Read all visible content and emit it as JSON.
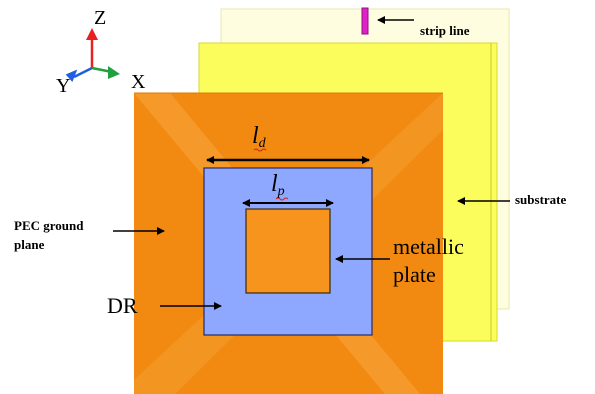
{
  "labels": {
    "strip_line": "strip line",
    "substrate": "substrate",
    "pec_line1": "PEC ground",
    "pec_line2": "plane",
    "metallic_line1": "metallic",
    "metallic_line2": "plate",
    "dr": "DR",
    "ld_base": "l",
    "ld_sub": "d",
    "lp_base": "l",
    "lp_sub": "p"
  },
  "axes": {
    "z": "Z",
    "y": "Y",
    "x": "X"
  },
  "colors": {
    "back_substrate": "#fffde0",
    "front_substrate": "#fbfd5c",
    "ground_plane": "#f28a12",
    "ground_plane_highlight": "#f7a83e",
    "dielectric_resonator": "#8fa8ff",
    "metallic_plate": "#f7941d",
    "strip_line": "#e020c8",
    "axis_z": "#e82020",
    "axis_y": "#2060e0",
    "axis_x": "#20a040"
  }
}
